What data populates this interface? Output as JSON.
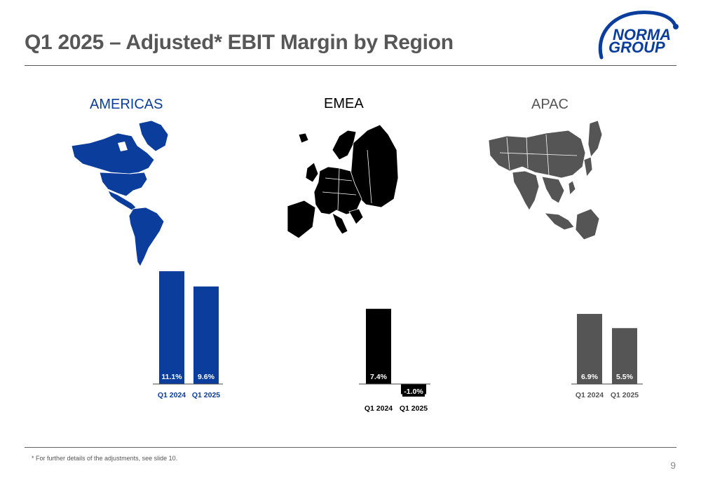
{
  "title": "Q1 2025 – Adjusted* EBIT Margin by Region",
  "logo": {
    "line1": "NORMA",
    "line2": "GROUP"
  },
  "footnote": "* For further details of the adjustments, see slide 10.",
  "page_number": "9",
  "colors": {
    "americas": "#0a3d9c",
    "emea": "#000000",
    "apac": "#555555",
    "title": "#575757"
  },
  "regions": [
    {
      "name": "AMERICAS",
      "map_icon": "americas-map-icon"
    },
    {
      "name": "EMEA",
      "map_icon": "europe-map-icon"
    },
    {
      "name": "APAC",
      "map_icon": "asia-map-icon"
    }
  ],
  "chart_data": [
    {
      "type": "bar",
      "region": "AMERICAS",
      "categories": [
        "Q1 2024",
        "Q1 2025"
      ],
      "values": [
        11.1,
        9.6
      ],
      "labels": [
        "11.1%",
        "9.6%"
      ],
      "unit": "%",
      "color": "#0a3d9c"
    },
    {
      "type": "bar",
      "region": "EMEA",
      "categories": [
        "Q1 2024",
        "Q1 2025"
      ],
      "values": [
        7.4,
        -1.0
      ],
      "labels": [
        "7.4%",
        "-1.0%"
      ],
      "unit": "%",
      "color": "#000000"
    },
    {
      "type": "bar",
      "region": "APAC",
      "categories": [
        "Q1 2024",
        "Q1 2025"
      ],
      "values": [
        6.9,
        5.5
      ],
      "labels": [
        "6.9%",
        "5.5%"
      ],
      "unit": "%",
      "color": "#555555"
    }
  ]
}
